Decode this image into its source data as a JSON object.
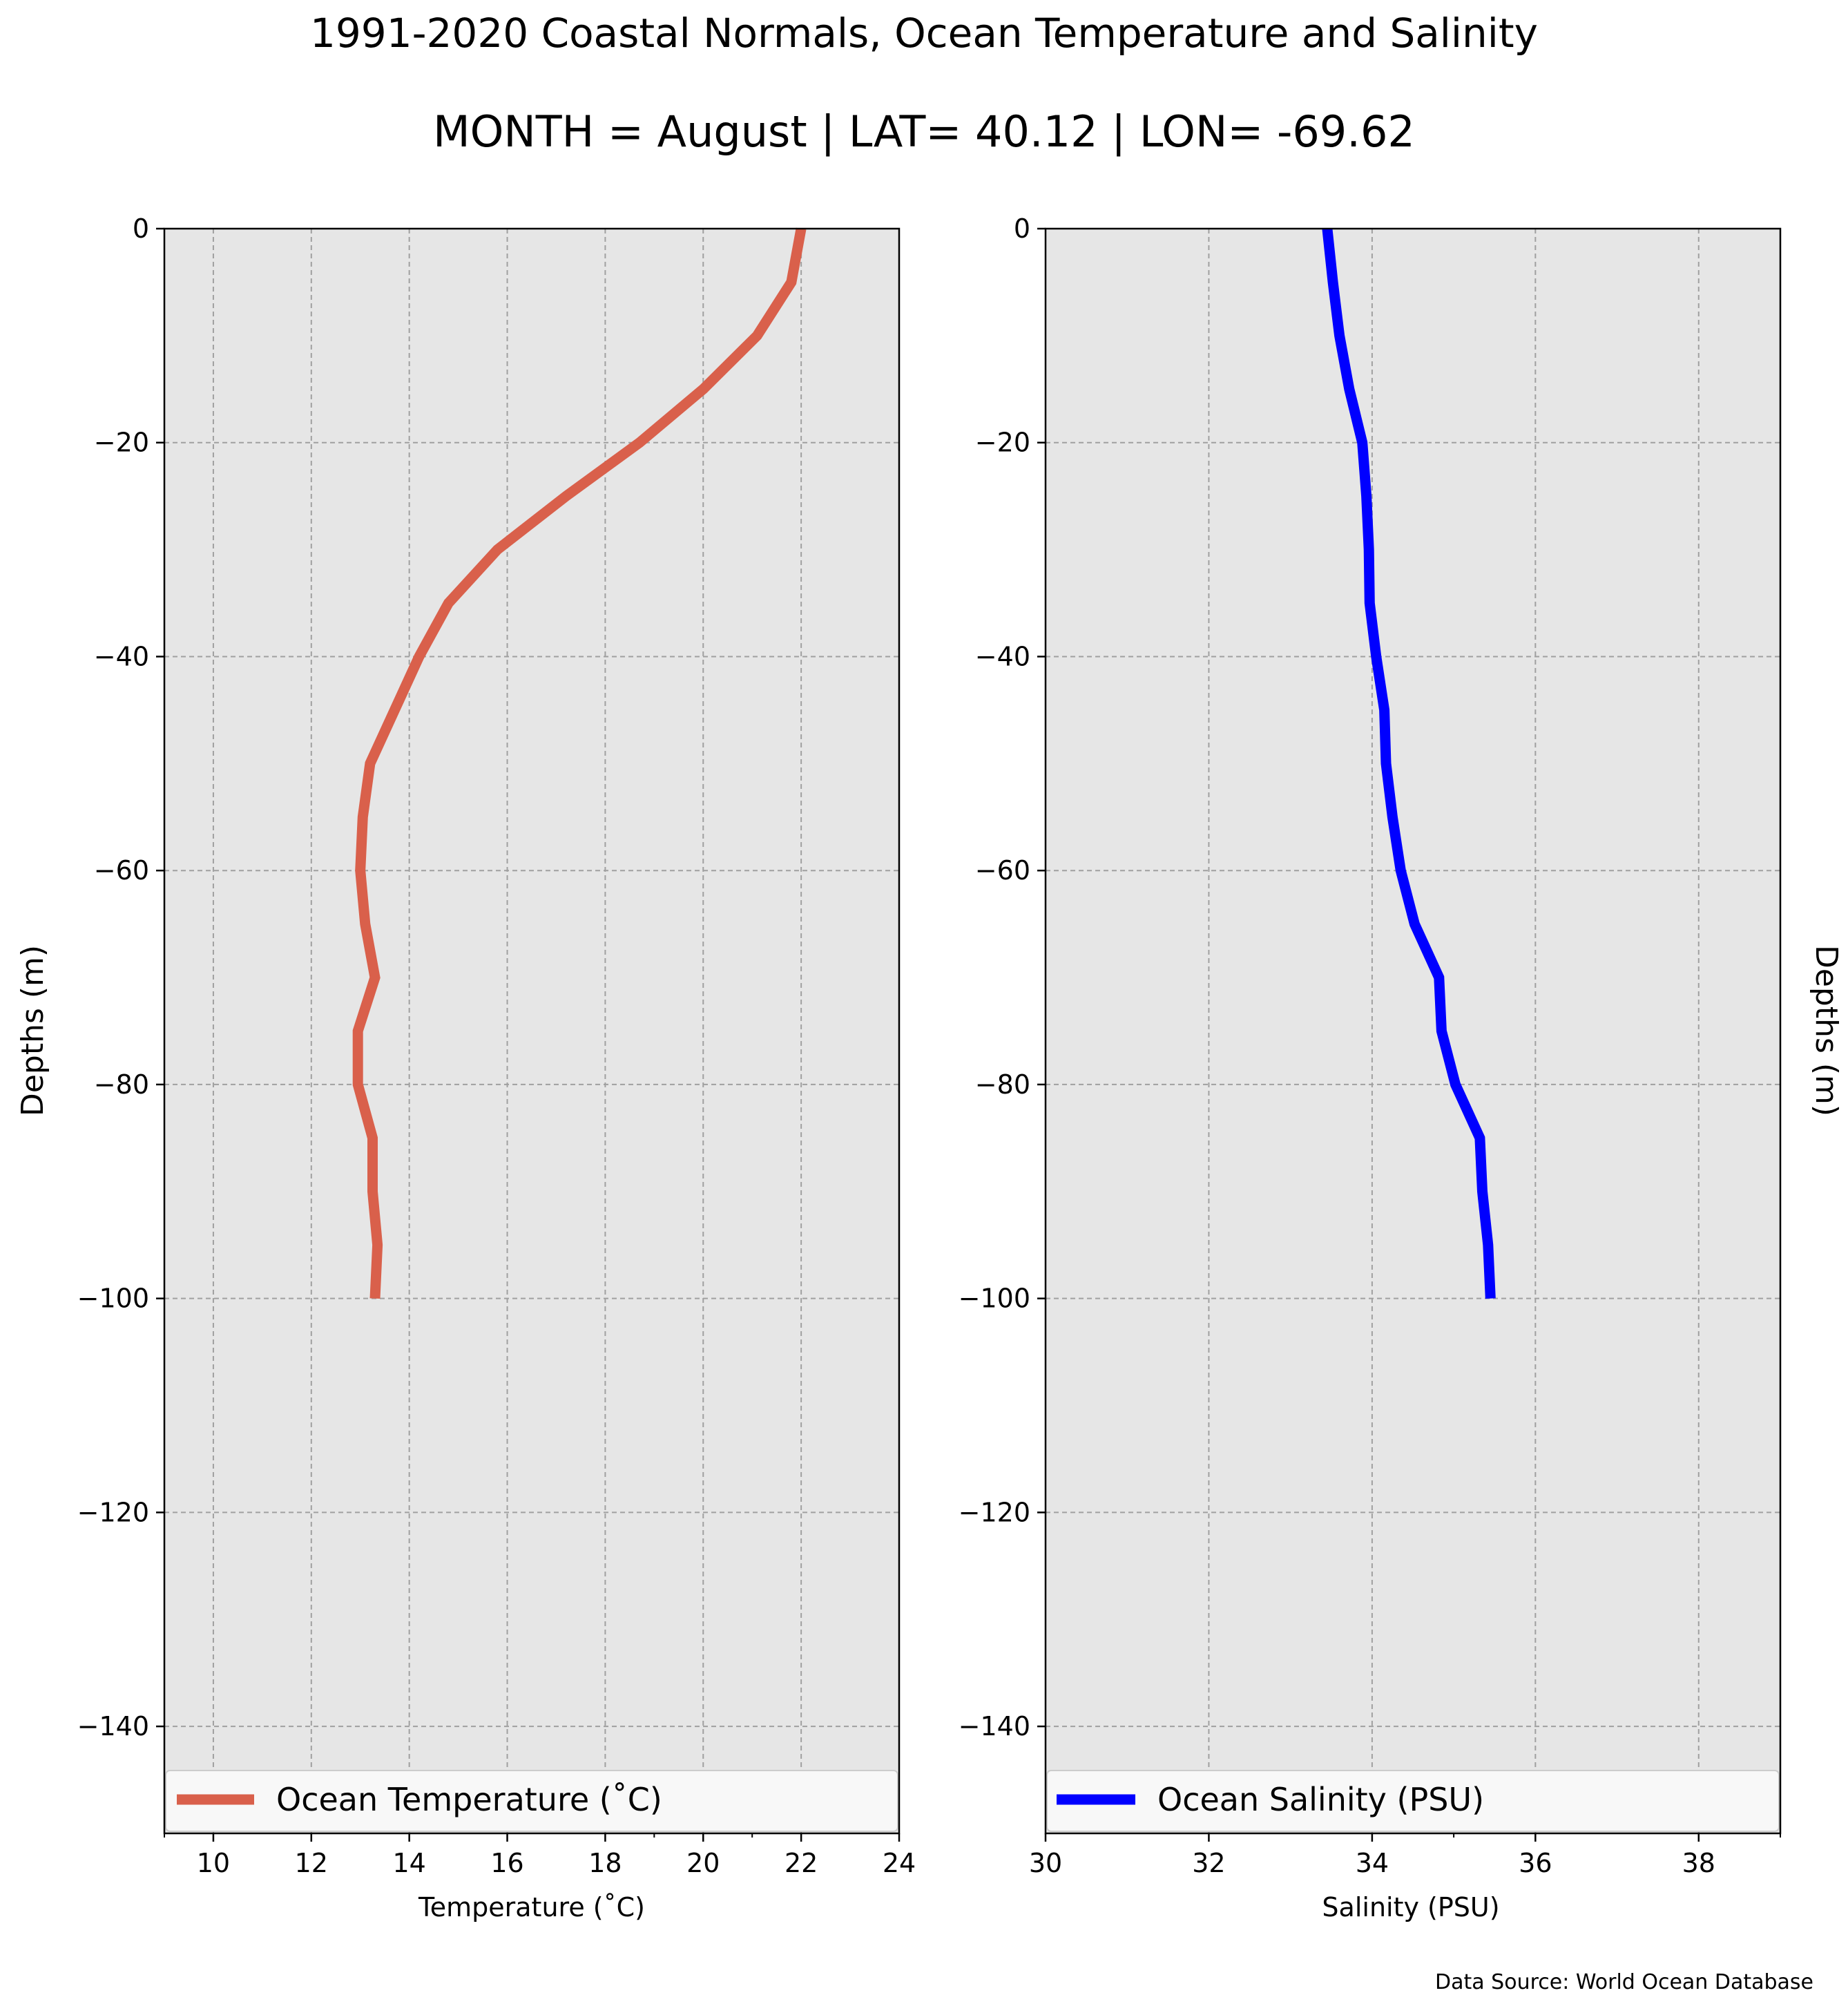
{
  "figure": {
    "title": "1991-2020 Coastal Normals, Ocean Temperature and Salinity",
    "subtitle": "MONTH = August | LAT= 40.12 | LON= -69.62",
    "source_note": "Data Source: World Ocean Database"
  },
  "chart_data": [
    {
      "type": "line",
      "xlabel": "Temperature (˚C)",
      "ylabel": "Depths (m)",
      "xlim": [
        9,
        24
      ],
      "ylim": [
        -150,
        0
      ],
      "xticks": [
        "10",
        "12",
        "14",
        "16",
        "18",
        "20",
        "22",
        "24"
      ],
      "yticks": [
        "0",
        "−20",
        "−40",
        "−60",
        "−80",
        "−100",
        "−120",
        "−140"
      ],
      "grid": true,
      "legend_placement": "lower center",
      "series": [
        {
          "name": "Ocean Temperature (˚C)",
          "color": "#d9604b",
          "x": [
            22.0,
            21.8,
            21.1,
            20.0,
            18.7,
            17.2,
            15.8,
            14.8,
            14.2,
            13.7,
            13.2,
            13.05,
            13.0,
            13.1,
            13.3,
            12.95,
            12.95,
            13.25,
            13.25,
            13.35,
            13.3
          ],
          "y": [
            0,
            -5,
            -10,
            -15,
            -20,
            -25,
            -30,
            -35,
            -40,
            -45,
            -50,
            -55,
            -60,
            -65,
            -70,
            -75,
            -80,
            -85,
            -90,
            -95,
            -100
          ]
        }
      ]
    },
    {
      "type": "line",
      "xlabel": "Salinity (PSU)",
      "ylabel": "Depths (m)",
      "xlim": [
        30,
        39
      ],
      "ylim": [
        -150,
        0
      ],
      "xticks": [
        "30",
        "32",
        "34",
        "36",
        "38"
      ],
      "yticks": [
        "0",
        "−20",
        "−40",
        "−60",
        "−80",
        "−100",
        "−120",
        "−140"
      ],
      "grid": true,
      "legend_placement": "lower center",
      "series": [
        {
          "name": "Ocean Salinity (PSU)",
          "color": "#0000ff",
          "x": [
            33.45,
            33.52,
            33.6,
            33.72,
            33.88,
            33.93,
            33.96,
            33.97,
            34.05,
            34.15,
            34.17,
            34.25,
            34.35,
            34.52,
            34.82,
            34.85,
            35.02,
            35.32,
            35.35,
            35.42,
            35.45
          ],
          "y": [
            0,
            -5,
            -10,
            -15,
            -20,
            -25,
            -30,
            -35,
            -40,
            -45,
            -50,
            -55,
            -60,
            -65,
            -70,
            -75,
            -80,
            -85,
            -90,
            -95,
            -100
          ]
        }
      ]
    }
  ]
}
